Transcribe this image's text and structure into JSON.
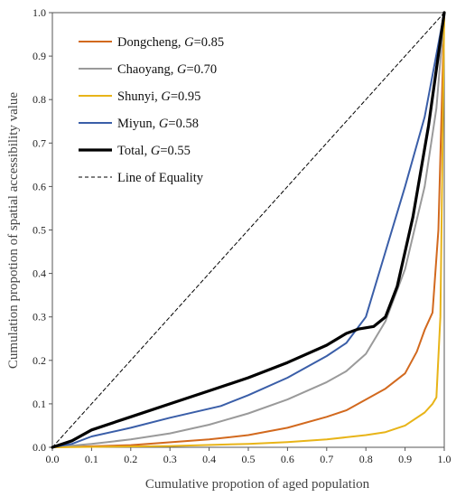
{
  "chart_data": {
    "type": "line",
    "title": "",
    "xlabel": "Cumulative propotion of aged population",
    "ylabel": "Cumulation propotion of spatial accessibility value",
    "xlim": [
      0,
      1
    ],
    "ylim": [
      0,
      1
    ],
    "x_ticks": [
      "0.0",
      "0.1",
      "0.2",
      "0.3",
      "0.4",
      "0.5",
      "0.6",
      "0.7",
      "0.8",
      "0.9",
      "1.0"
    ],
    "y_ticks": [
      "0.0",
      "0.1",
      "0.2",
      "0.3",
      "0.4",
      "0.5",
      "0.6",
      "0.7",
      "0.8",
      "0.9",
      "1.0"
    ],
    "grid": false,
    "legend_position": "top-left",
    "series": [
      {
        "name": "Dongcheng, G=0.85",
        "label_main": "Dongcheng, ",
        "label_g": "G",
        "label_val": "=0.85",
        "color": "#d2691e",
        "style": "solid",
        "points": [
          [
            0,
            0
          ],
          [
            0.2,
            0.005
          ],
          [
            0.4,
            0.018
          ],
          [
            0.5,
            0.028
          ],
          [
            0.6,
            0.045
          ],
          [
            0.7,
            0.07
          ],
          [
            0.75,
            0.085
          ],
          [
            0.8,
            0.11
          ],
          [
            0.85,
            0.135
          ],
          [
            0.9,
            0.17
          ],
          [
            0.93,
            0.22
          ],
          [
            0.95,
            0.27
          ],
          [
            0.97,
            0.31
          ],
          [
            0.985,
            0.5
          ],
          [
            1.0,
            1.0
          ]
        ]
      },
      {
        "name": "Chaoyang, G=0.70",
        "label_main": "Chaoyang, ",
        "label_g": "G",
        "label_val": "=0.70",
        "color": "#9a9a9a",
        "style": "solid",
        "points": [
          [
            0,
            0
          ],
          [
            0.1,
            0.008
          ],
          [
            0.2,
            0.018
          ],
          [
            0.3,
            0.032
          ],
          [
            0.4,
            0.052
          ],
          [
            0.5,
            0.078
          ],
          [
            0.6,
            0.11
          ],
          [
            0.7,
            0.15
          ],
          [
            0.75,
            0.175
          ],
          [
            0.8,
            0.215
          ],
          [
            0.85,
            0.29
          ],
          [
            0.9,
            0.41
          ],
          [
            0.95,
            0.6
          ],
          [
            0.98,
            0.78
          ],
          [
            1.0,
            1.0
          ]
        ]
      },
      {
        "name": "Shunyi, G=0.95",
        "label_main": "Shunyi, ",
        "label_g": "G",
        "label_val": "=0.95",
        "color": "#e8b418",
        "style": "solid",
        "points": [
          [
            0,
            0
          ],
          [
            0.3,
            0.003
          ],
          [
            0.5,
            0.008
          ],
          [
            0.6,
            0.012
          ],
          [
            0.7,
            0.018
          ],
          [
            0.8,
            0.028
          ],
          [
            0.85,
            0.035
          ],
          [
            0.9,
            0.05
          ],
          [
            0.95,
            0.08
          ],
          [
            0.97,
            0.1
          ],
          [
            0.98,
            0.115
          ],
          [
            0.99,
            0.3
          ],
          [
            1.0,
            1.0
          ]
        ]
      },
      {
        "name": "Miyun, G=0.58",
        "label_main": "Miyun, ",
        "label_g": "G",
        "label_val": "=0.58",
        "color": "#3a5ea8",
        "style": "solid",
        "points": [
          [
            0,
            0
          ],
          [
            0.05,
            0.008
          ],
          [
            0.1,
            0.025
          ],
          [
            0.2,
            0.045
          ],
          [
            0.3,
            0.068
          ],
          [
            0.43,
            0.095
          ],
          [
            0.5,
            0.12
          ],
          [
            0.6,
            0.16
          ],
          [
            0.7,
            0.21
          ],
          [
            0.75,
            0.24
          ],
          [
            0.8,
            0.3
          ],
          [
            0.85,
            0.45
          ],
          [
            0.9,
            0.6
          ],
          [
            0.95,
            0.76
          ],
          [
            1.0,
            1.0
          ]
        ]
      },
      {
        "name": "Total, G=0.55",
        "label_main": "Total, ",
        "label_g": "G",
        "label_val": "=0.55",
        "color": "#000000",
        "style": "thick",
        "points": [
          [
            0,
            0
          ],
          [
            0.05,
            0.015
          ],
          [
            0.1,
            0.04
          ],
          [
            0.2,
            0.07
          ],
          [
            0.3,
            0.1
          ],
          [
            0.4,
            0.13
          ],
          [
            0.5,
            0.16
          ],
          [
            0.6,
            0.195
          ],
          [
            0.7,
            0.235
          ],
          [
            0.75,
            0.262
          ],
          [
            0.78,
            0.272
          ],
          [
            0.82,
            0.278
          ],
          [
            0.85,
            0.3
          ],
          [
            0.88,
            0.37
          ],
          [
            0.92,
            0.53
          ],
          [
            0.96,
            0.74
          ],
          [
            1.0,
            1.0
          ]
        ]
      },
      {
        "name": "Line of Equality",
        "label_main": "Line of Equality",
        "label_g": "",
        "label_val": "",
        "color": "#000000",
        "style": "dashed",
        "points": [
          [
            0,
            0
          ],
          [
            1,
            1
          ]
        ]
      }
    ]
  }
}
